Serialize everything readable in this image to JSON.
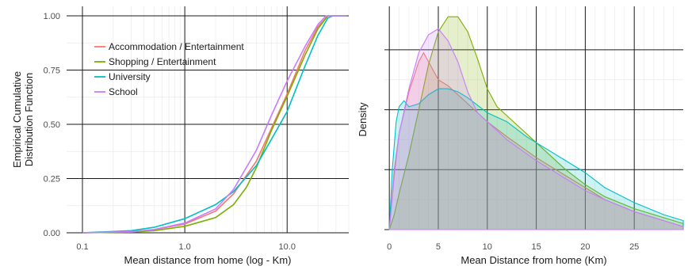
{
  "chart_data": [
    {
      "type": "line",
      "subtype": "ecdf",
      "xlabel": "Mean distance from home (log - Km)",
      "ylabel_lines": [
        "Empirical Cumulative",
        "Distribution Function"
      ],
      "x_scale": "log",
      "xlim": [
        0.07,
        40
      ],
      "ylim": [
        0,
        1
      ],
      "x_ticks": [
        0.1,
        1.0,
        10.0
      ],
      "x_tick_labels": [
        "0.1",
        "1.0",
        "10.0"
      ],
      "y_ticks": [
        0,
        0.25,
        0.5,
        0.75,
        1.0
      ],
      "y_tick_labels": [
        "0.00",
        "0.25",
        "0.50",
        "0.75",
        "1.00"
      ],
      "grid": true,
      "legend_position": "top-left",
      "series": [
        {
          "name": "Accommodation / Entertainment",
          "color": "#F8766D",
          "points": [
            [
              0.1,
              0
            ],
            [
              0.3,
              0.005
            ],
            [
              0.5,
              0.015
            ],
            [
              1,
              0.04
            ],
            [
              2,
              0.1
            ],
            [
              3,
              0.18
            ],
            [
              5,
              0.33
            ],
            [
              7,
              0.48
            ],
            [
              10,
              0.64
            ],
            [
              15,
              0.84
            ],
            [
              20,
              0.95
            ],
            [
              25,
              1.0
            ],
            [
              38,
              1.0
            ]
          ]
        },
        {
          "name": "Shopping / Entertainment",
          "color": "#7CAE00",
          "points": [
            [
              0.1,
              0
            ],
            [
              0.3,
              0.003
            ],
            [
              0.5,
              0.01
            ],
            [
              1,
              0.03
            ],
            [
              2,
              0.07
            ],
            [
              3,
              0.13
            ],
            [
              4,
              0.21
            ],
            [
              5,
              0.3
            ],
            [
              7,
              0.47
            ],
            [
              10,
              0.63
            ],
            [
              15,
              0.82
            ],
            [
              20,
              0.94
            ],
            [
              25,
              1.0
            ],
            [
              38,
              1.0
            ]
          ]
        },
        {
          "name": "University",
          "color": "#00BFC4",
          "points": [
            [
              0.1,
              0
            ],
            [
              0.3,
              0.01
            ],
            [
              0.5,
              0.025
            ],
            [
              1,
              0.065
            ],
            [
              2,
              0.13
            ],
            [
              3,
              0.19
            ],
            [
              5,
              0.31
            ],
            [
              7,
              0.43
            ],
            [
              10,
              0.56
            ],
            [
              15,
              0.77
            ],
            [
              20,
              0.91
            ],
            [
              25,
              0.99
            ],
            [
              28,
              1.0
            ],
            [
              38,
              1.0
            ]
          ]
        },
        {
          "name": "School",
          "color": "#C77CFF",
          "points": [
            [
              0.1,
              0
            ],
            [
              0.3,
              0.005
            ],
            [
              0.5,
              0.015
            ],
            [
              1,
              0.045
            ],
            [
              2,
              0.11
            ],
            [
              3,
              0.2
            ],
            [
              5,
              0.38
            ],
            [
              7,
              0.54
            ],
            [
              10,
              0.7
            ],
            [
              15,
              0.86
            ],
            [
              20,
              0.96
            ],
            [
              24,
              1.0
            ],
            [
              38,
              1.0
            ]
          ]
        }
      ]
    },
    {
      "type": "area",
      "subtype": "density",
      "xlabel": "Mean Distance from home (Km)",
      "ylabel": "Density",
      "xlim": [
        -0.5,
        30
      ],
      "ylim": [
        0,
        0.07
      ],
      "x_ticks": [
        0,
        5,
        10,
        15,
        20,
        25
      ],
      "x_tick_labels": [
        "0",
        "5",
        "10",
        "15",
        "20",
        "25"
      ],
      "y_ticks": [
        0,
        0.02,
        0.04,
        0.06
      ],
      "y_tick_labels": [],
      "grid": true,
      "series": [
        {
          "name": "Accommodation / Entertainment",
          "color": "#F8766D",
          "points": [
            [
              0,
              0
            ],
            [
              0.5,
              0.02
            ],
            [
              1,
              0.032
            ],
            [
              2,
              0.046
            ],
            [
              3,
              0.056
            ],
            [
              3.5,
              0.059
            ],
            [
              4,
              0.056
            ],
            [
              5,
              0.05
            ],
            [
              6,
              0.048
            ],
            [
              7,
              0.045
            ],
            [
              8,
              0.042
            ],
            [
              10,
              0.036
            ],
            [
              12,
              0.031
            ],
            [
              15,
              0.024
            ],
            [
              18,
              0.018
            ],
            [
              20,
              0.014
            ],
            [
              22,
              0.01
            ],
            [
              25,
              0.006
            ],
            [
              28,
              0.003
            ],
            [
              30,
              0.001
            ]
          ]
        },
        {
          "name": "Shopping / Entertainment",
          "color": "#7CAE00",
          "points": [
            [
              0,
              0
            ],
            [
              0.5,
              0.005
            ],
            [
              1,
              0.012
            ],
            [
              2,
              0.025
            ],
            [
              3,
              0.04
            ],
            [
              4,
              0.055
            ],
            [
              5,
              0.066
            ],
            [
              6,
              0.071
            ],
            [
              7,
              0.071
            ],
            [
              8,
              0.066
            ],
            [
              9,
              0.057
            ],
            [
              10,
              0.047
            ],
            [
              11,
              0.041
            ],
            [
              12,
              0.038
            ],
            [
              15,
              0.029
            ],
            [
              18,
              0.02
            ],
            [
              20,
              0.015
            ],
            [
              22,
              0.011
            ],
            [
              25,
              0.007
            ],
            [
              28,
              0.004
            ],
            [
              30,
              0.002
            ]
          ]
        },
        {
          "name": "University",
          "color": "#00BFC4",
          "points": [
            [
              0,
              0
            ],
            [
              0.3,
              0.02
            ],
            [
              0.7,
              0.036
            ],
            [
              1,
              0.041
            ],
            [
              1.5,
              0.043
            ],
            [
              2,
              0.041
            ],
            [
              3,
              0.042
            ],
            [
              4,
              0.045
            ],
            [
              5,
              0.047
            ],
            [
              6,
              0.047
            ],
            [
              7,
              0.046
            ],
            [
              8,
              0.044
            ],
            [
              10,
              0.039
            ],
            [
              12,
              0.036
            ],
            [
              14,
              0.031
            ],
            [
              16,
              0.027
            ],
            [
              18,
              0.023
            ],
            [
              20,
              0.019
            ],
            [
              22,
              0.014
            ],
            [
              25,
              0.009
            ],
            [
              28,
              0.005
            ],
            [
              30,
              0.003
            ]
          ]
        },
        {
          "name": "School",
          "color": "#C77CFF",
          "points": [
            [
              0,
              0
            ],
            [
              0.5,
              0.018
            ],
            [
              1,
              0.032
            ],
            [
              2,
              0.047
            ],
            [
              3,
              0.059
            ],
            [
              4,
              0.065
            ],
            [
              5,
              0.067
            ],
            [
              6,
              0.063
            ],
            [
              7,
              0.056
            ],
            [
              8,
              0.046
            ],
            [
              9,
              0.039
            ],
            [
              10,
              0.036
            ],
            [
              12,
              0.03
            ],
            [
              15,
              0.023
            ],
            [
              18,
              0.017
            ],
            [
              20,
              0.013
            ],
            [
              22,
              0.01
            ],
            [
              25,
              0.006
            ],
            [
              28,
              0.003
            ],
            [
              30,
              0.001
            ]
          ]
        }
      ]
    }
  ]
}
